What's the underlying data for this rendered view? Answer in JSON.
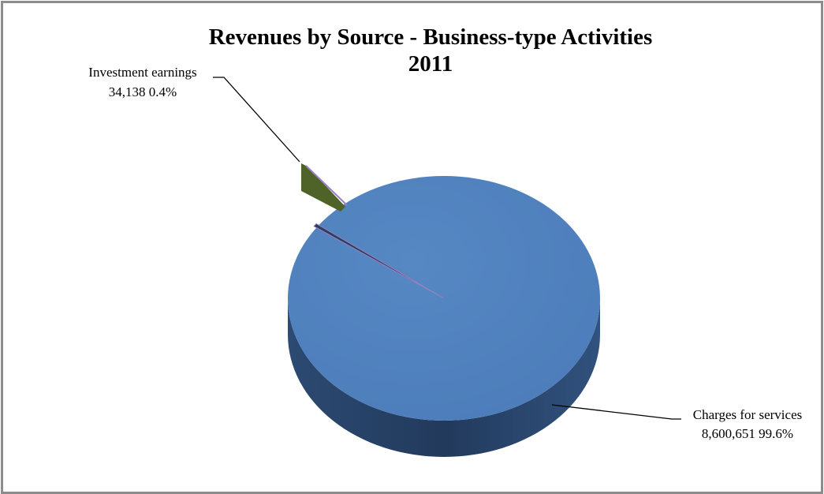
{
  "chart_data": {
    "type": "pie",
    "title_lines": [
      "Revenues by Source - Business-type Activities",
      "2011"
    ],
    "slices": [
      {
        "label": "Charges for services",
        "value": 8600651,
        "value_text": "8,600,651",
        "percent_text": "99.6%",
        "color": "#4f81bd"
      },
      {
        "label": "Investment earnings",
        "value": 34138,
        "value_text": "34,138",
        "percent_text": "0.4%",
        "color": "#4f6228"
      }
    ],
    "accent_colors": {
      "thin_slice_edge": "#9b7fbf",
      "frame": "#8c8c8c"
    },
    "legend": "none",
    "style": "3d-exploded"
  }
}
